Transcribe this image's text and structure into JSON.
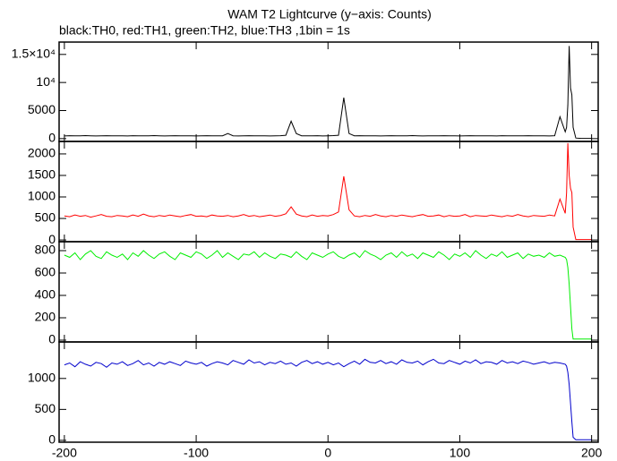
{
  "chart_data": {
    "type": "line",
    "title": "WAM T2 Lightcurve (y−axis: Counts)",
    "subtitle": "black:TH0, red:TH1, green:TH2, blue:TH3 ,1bin = 1s",
    "x": [
      -200,
      -196,
      -192,
      -188,
      -184,
      -180,
      -176,
      -172,
      -168,
      -164,
      -160,
      -156,
      -152,
      -148,
      -144,
      -140,
      -136,
      -132,
      -128,
      -124,
      -120,
      -116,
      -112,
      -108,
      -104,
      -100,
      -96,
      -92,
      -88,
      -84,
      -80,
      -76,
      -72,
      -68,
      -64,
      -60,
      -56,
      -52,
      -48,
      -44,
      -40,
      -36,
      -32,
      -28,
      -24,
      -20,
      -16,
      -12,
      -8,
      -4,
      0,
      4,
      8,
      12,
      16,
      20,
      24,
      28,
      32,
      36,
      40,
      44,
      48,
      52,
      56,
      60,
      64,
      68,
      72,
      76,
      80,
      84,
      88,
      92,
      96,
      100,
      104,
      108,
      112,
      116,
      120,
      124,
      128,
      132,
      136,
      140,
      144,
      148,
      152,
      156,
      160,
      164,
      168,
      172,
      176,
      180,
      181,
      182,
      183,
      184,
      185,
      186,
      188,
      192,
      196,
      200
    ],
    "xlim": [
      -204,
      205
    ],
    "xticks": [
      -200,
      -100,
      0,
      100,
      200
    ],
    "panels": [
      {
        "color": "#000000",
        "ylim": [
          -500,
          17200
        ],
        "yticks": [
          0,
          5000,
          {
            "value": 10000,
            "label": "10⁴"
          },
          {
            "value": 15000,
            "label": "1.5×10⁴"
          }
        ],
        "values": [
          480,
          520,
          500,
          490,
          530,
          510,
          470,
          500,
          520,
          490,
          510,
          500,
          480,
          520,
          500,
          490,
          510,
          530,
          500,
          480,
          500,
          520,
          490,
          510,
          500,
          470,
          500,
          520,
          510,
          490,
          500,
          900,
          500,
          480,
          510,
          520,
          490,
          500,
          510,
          480,
          500,
          520,
          600,
          3100,
          900,
          510,
          490,
          500,
          520,
          480,
          500,
          530,
          600,
          7300,
          900,
          500,
          520,
          490,
          500,
          510,
          480,
          500,
          520,
          510,
          490,
          500,
          530,
          500,
          480,
          510,
          500,
          490,
          520,
          500,
          510,
          480,
          500,
          520,
          490,
          500,
          510,
          500,
          480,
          520,
          500,
          490,
          510,
          500,
          520,
          490,
          500,
          510,
          480,
          520,
          3900,
          1200,
          2000,
          6000,
          16500,
          9000,
          7800,
          2000,
          100,
          50,
          50,
          50
        ]
      },
      {
        "color": "#ff0000",
        "ylim": [
          -40,
          2290
        ],
        "yticks": [
          0,
          500,
          1000,
          1500,
          2000
        ],
        "values": [
          560,
          540,
          580,
          550,
          570,
          530,
          560,
          590,
          550,
          540,
          570,
          560,
          540,
          580,
          550,
          600,
          560,
          540,
          570,
          550,
          580,
          560,
          540,
          570,
          590,
          550,
          560,
          540,
          580,
          560,
          550,
          570,
          540,
          560,
          590,
          550,
          570,
          540,
          560,
          580,
          550,
          570,
          610,
          770,
          600,
          560,
          540,
          580,
          550,
          570,
          560,
          590,
          650,
          1480,
          700,
          560,
          540,
          570,
          550,
          590,
          560,
          540,
          570,
          550,
          580,
          560,
          540,
          570,
          590,
          550,
          560,
          580,
          540,
          570,
          550,
          560,
          590,
          540,
          570,
          560,
          550,
          580,
          560,
          540,
          570,
          550,
          590,
          560,
          540,
          570,
          560,
          550,
          580,
          560,
          950,
          620,
          1100,
          2250,
          1500,
          1200,
          1100,
          300,
          10,
          10,
          10,
          10
        ]
      },
      {
        "color": "#00ee00",
        "ylim": [
          -16,
          880
        ],
        "yticks": [
          0,
          200,
          400,
          600,
          800
        ],
        "values": [
          760,
          740,
          780,
          720,
          770,
          800,
          750,
          730,
          790,
          760,
          740,
          770,
          720,
          780,
          750,
          800,
          760,
          730,
          770,
          790,
          750,
          720,
          780,
          760,
          740,
          790,
          770,
          730,
          760,
          800,
          740,
          780,
          750,
          720,
          770,
          760,
          790,
          740,
          780,
          750,
          730,
          770,
          760,
          740,
          790,
          750,
          720,
          780,
          760,
          740,
          770,
          790,
          750,
          730,
          760,
          780,
          740,
          800,
          770,
          750,
          720,
          760,
          780,
          740,
          790,
          750,
          770,
          730,
          780,
          760,
          740,
          790,
          760,
          720,
          770,
          750,
          780,
          740,
          800,
          760,
          730,
          770,
          750,
          790,
          740,
          760,
          780,
          730,
          770,
          750,
          760,
          740,
          780,
          750,
          760,
          740,
          720,
          650,
          500,
          300,
          100,
          10,
          10,
          10,
          10,
          10
        ]
      },
      {
        "color": "#0000cc",
        "ylim": [
          -30,
          1590
        ],
        "yticks": [
          0,
          500,
          1000
        ],
        "values": [
          1220,
          1250,
          1190,
          1270,
          1230,
          1200,
          1260,
          1240,
          1180,
          1250,
          1230,
          1270,
          1210,
          1240,
          1290,
          1220,
          1250,
          1200,
          1260,
          1230,
          1270,
          1240,
          1210,
          1280,
          1250,
          1230,
          1260,
          1200,
          1240,
          1270,
          1250,
          1220,
          1290,
          1260,
          1230,
          1300,
          1250,
          1270,
          1220,
          1260,
          1240,
          1280,
          1230,
          1250,
          1200,
          1260,
          1290,
          1240,
          1270,
          1230,
          1260,
          1220,
          1250,
          1190,
          1240,
          1280,
          1230,
          1310,
          1260,
          1250,
          1290,
          1240,
          1270,
          1230,
          1300,
          1260,
          1250,
          1280,
          1220,
          1270,
          1310,
          1250,
          1240,
          1290,
          1260,
          1230,
          1280,
          1250,
          1300,
          1240,
          1270,
          1260,
          1230,
          1290,
          1250,
          1270,
          1240,
          1280,
          1260,
          1230,
          1250,
          1270,
          1240,
          1260,
          1250,
          1230,
          1200,
          1100,
          900,
          600,
          300,
          50,
          10,
          10,
          10,
          10
        ]
      }
    ]
  }
}
